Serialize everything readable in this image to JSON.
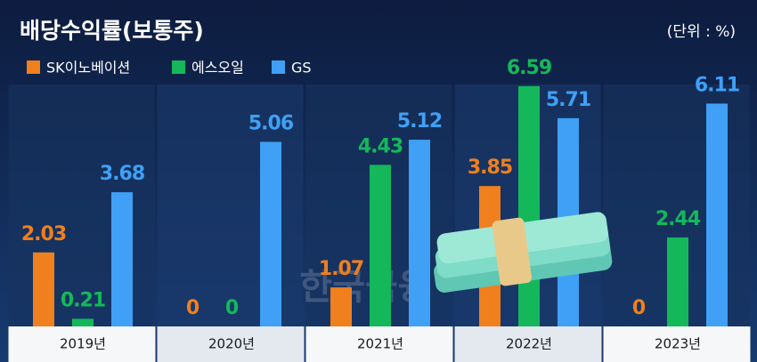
{
  "chart_data": {
    "type": "bar",
    "title": "배당수익률(보통주)",
    "unit": "(단위 : %)",
    "watermark": "한국금융",
    "categories": [
      "2019년",
      "2020년",
      "2021년",
      "2022년",
      "2023년"
    ],
    "series": [
      {
        "name": "SK이노베이션",
        "color": "#f07f1e",
        "values": [
          2.03,
          0,
          1.07,
          3.85,
          0
        ]
      },
      {
        "name": "에스오일",
        "color": "#14b85a",
        "values": [
          0.21,
          0,
          4.43,
          6.59,
          2.44
        ]
      },
      {
        "name": "GS",
        "color": "#3fa0f5",
        "values": [
          3.68,
          5.06,
          5.12,
          5.71,
          6.11
        ]
      }
    ],
    "legend": "top-left"
  }
}
